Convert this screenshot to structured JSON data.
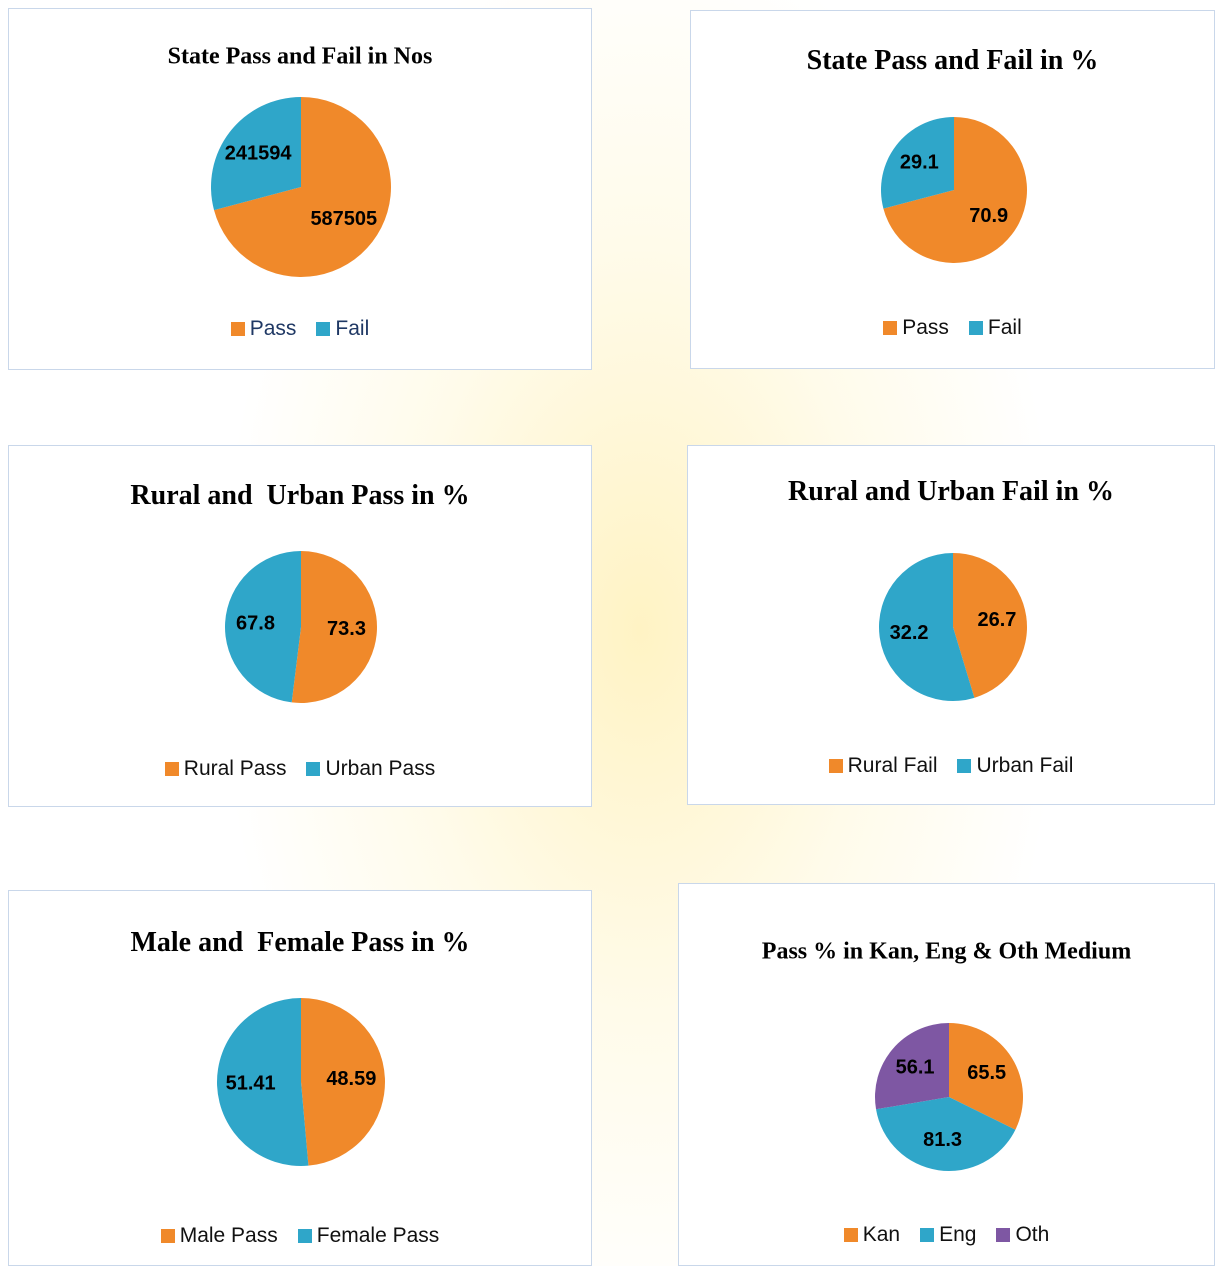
{
  "chart_data": [
    {
      "type": "pie",
      "title": "State Pass and Fail in Nos",
      "categories": [
        "Pass",
        "Fail"
      ],
      "values": [
        587505,
        241594
      ],
      "colors": [
        "#f0892a",
        "#2fa6c9"
      ],
      "legend_text_color": "#1f3864"
    },
    {
      "type": "pie",
      "title": "State Pass and Fail in %",
      "categories": [
        "Pass",
        "Fail"
      ],
      "values": [
        70.9,
        29.1
      ],
      "colors": [
        "#f0892a",
        "#2fa6c9"
      ],
      "legend_text_color": "#111111"
    },
    {
      "type": "pie",
      "title": "Rural and  Urban Pass in %",
      "categories": [
        "Rural Pass",
        "Urban Pass"
      ],
      "values": [
        73.3,
        67.8
      ],
      "colors": [
        "#f0892a",
        "#2fa6c9"
      ],
      "legend_text_color": "#111111"
    },
    {
      "type": "pie",
      "title": "Rural and Urban Fail in %",
      "categories": [
        "Rural Fail",
        "Urban Fail"
      ],
      "values": [
        26.7,
        32.2
      ],
      "colors": [
        "#f0892a",
        "#2fa6c9"
      ],
      "legend_text_color": "#111111"
    },
    {
      "type": "pie",
      "title": "Male and  Female Pass in %",
      "categories": [
        "Male Pass",
        "Female Pass"
      ],
      "values": [
        48.59,
        51.41
      ],
      "colors": [
        "#f0892a",
        "#2fa6c9"
      ],
      "legend_text_color": "#111111"
    },
    {
      "type": "pie",
      "title": "Pass % in Kan, Eng & Oth Medium",
      "categories": [
        "Kan",
        "Eng",
        "Oth"
      ],
      "values": [
        65.5,
        81.3,
        56.1
      ],
      "colors": [
        "#f0892a",
        "#2fa6c9",
        "#7e57a3"
      ],
      "legend_text_color": "#111111"
    }
  ]
}
